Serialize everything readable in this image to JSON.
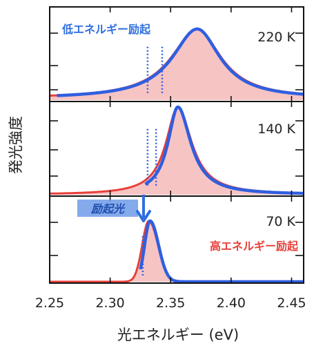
{
  "chart_data": {
    "type": "area",
    "xlabel": "光エネルギー (eV)",
    "ylabel": "発光強度",
    "xlim": [
      2.25,
      2.46
    ],
    "x_ticks": [
      "2.25",
      "2.30",
      "2.35",
      "2.40",
      "2.45"
    ],
    "colors": {
      "high_fill": "#f7c4c4",
      "high_line": "#e8403a",
      "low": "#2f5fe0"
    },
    "panels": [
      {
        "label": "220 K",
        "series": [
          {
            "key": "high",
            "peak_x": 2.372,
            "width_left": 0.026,
            "width_right": 0.024,
            "shape": "lorentz",
            "baseline": 0.02
          },
          {
            "key": "low",
            "peak_x": 2.372,
            "width_left": 0.025,
            "width_right": 0.023,
            "shape": "lorentz",
            "baseline": 0.02,
            "x_min": 2.256,
            "laser_lines": [
              2.331,
              2.343
            ]
          }
        ]
      },
      {
        "label": "140 K",
        "series": [
          {
            "key": "high",
            "peak_x": 2.356,
            "width_left": 0.012,
            "width_right": 0.014,
            "shape": "lorentz",
            "baseline": 0.0
          },
          {
            "key": "low",
            "peak_x": 2.356,
            "width_left": 0.01,
            "width_right": 0.013,
            "shape": "lorentz",
            "baseline": 0.0,
            "x_min": 2.329,
            "laser_lines": [
              2.331,
              2.338
            ]
          }
        ]
      },
      {
        "label": "70 K",
        "series": [
          {
            "key": "high",
            "peak_x": 2.332,
            "width_left": 0.0055,
            "width_right": 0.0075,
            "shape": "gauss",
            "baseline": 0.0
          },
          {
            "key": "low",
            "peak_x": 2.333,
            "width_left": 0.0045,
            "width_right": 0.007,
            "shape": "gauss",
            "baseline": 0.0,
            "x_min": 2.325,
            "laser_lines": [
              2.327
            ]
          }
        ]
      }
    ],
    "annotations": {
      "low_excitation": "低エネルギー励起",
      "high_excitation": "高エネルギー励起",
      "excitation_light": "励起光"
    }
  }
}
